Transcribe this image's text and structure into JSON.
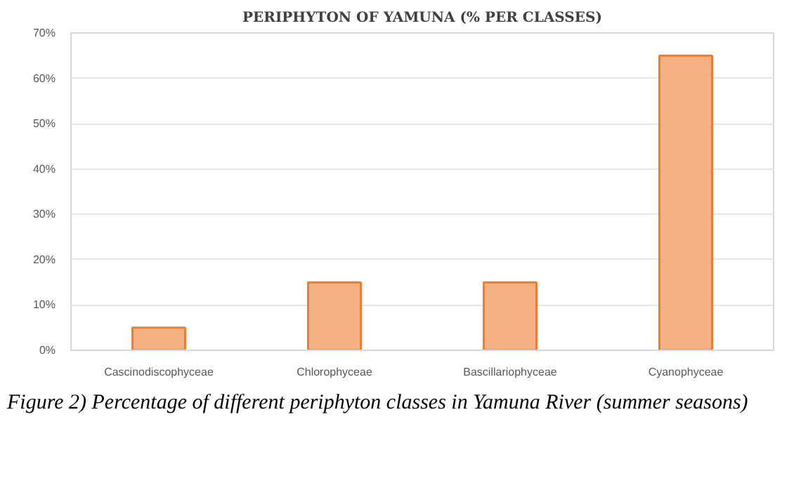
{
  "chart_data": {
    "type": "bar",
    "title": "PERIPHYTON OF YAMUNA (% PER CLASSES)",
    "categories": [
      "Cascinodiscophyceae",
      "Chlorophyceae",
      "Bascillariophyceae",
      "Cyanophyceae"
    ],
    "values": [
      5,
      15,
      15,
      65
    ],
    "color": "#f4b183",
    "ylim": [
      0,
      70
    ],
    "yticks": [
      {
        "value": 0,
        "label": "0%"
      },
      {
        "value": 10,
        "label": "10%"
      },
      {
        "value": 20,
        "label": "20%"
      },
      {
        "value": 30,
        "label": "30%"
      },
      {
        "value": 40,
        "label": "40%"
      },
      {
        "value": 50,
        "label": "50%"
      },
      {
        "value": 60,
        "label": "60%"
      },
      {
        "value": 70,
        "label": "70%"
      }
    ],
    "grid": "y",
    "annotations": [
      "Figure 2) Percentage of different periphyton classes in Yamuna River (summer seasons)"
    ]
  }
}
